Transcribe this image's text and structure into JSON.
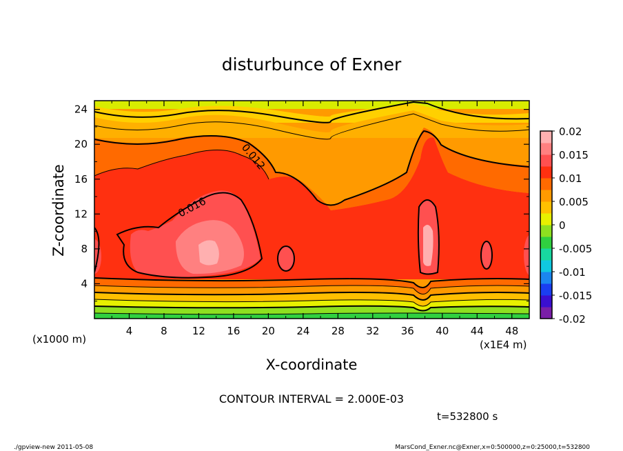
{
  "chart_data": {
    "type": "heatmap",
    "title": "disturbunce of Exner",
    "xlabel": "X-coordinate",
    "ylabel": "Z-coordinate",
    "x_unit_label": "(x1000 m)",
    "x_scale_label": "(x1E4 m)",
    "xlim": [
      0,
      50
    ],
    "ylim": [
      0,
      25
    ],
    "x_ticks": [
      "4",
      "8",
      "12",
      "16",
      "20",
      "24",
      "28",
      "32",
      "36",
      "40",
      "44",
      "48"
    ],
    "y_ticks": [
      "4",
      "8",
      "12",
      "16",
      "20",
      "24"
    ],
    "contour_labels": [
      "0.016",
      "0.012"
    ],
    "colorbar": {
      "tick_labels": [
        "0.02",
        "0.015",
        "0.01",
        "0.005",
        "0",
        "-0.005",
        "-0.01",
        "-0.015",
        "-0.02"
      ],
      "range": [
        -0.02,
        0.02
      ],
      "colors": [
        "#7a1fa8",
        "#3a0fd0",
        "#1a3ef0",
        "#1b86f0",
        "#10c8e0",
        "#18d8a0",
        "#30d040",
        "#8ee020",
        "#e8f000",
        "#ffc000",
        "#ff9a00",
        "#ff6a00",
        "#ff3010",
        "#ff5050",
        "#ff8080",
        "#ffb0b0"
      ]
    }
  },
  "contour_interval": "CONTOUR INTERVAL = 2.000E-03",
  "time_label": "t=532800 s",
  "footer_left": "./gpview-new   2011-05-08",
  "footer_right": "MarsCond_Exner.nc@Exner,x=0:500000,z=0:25000,t=532800"
}
